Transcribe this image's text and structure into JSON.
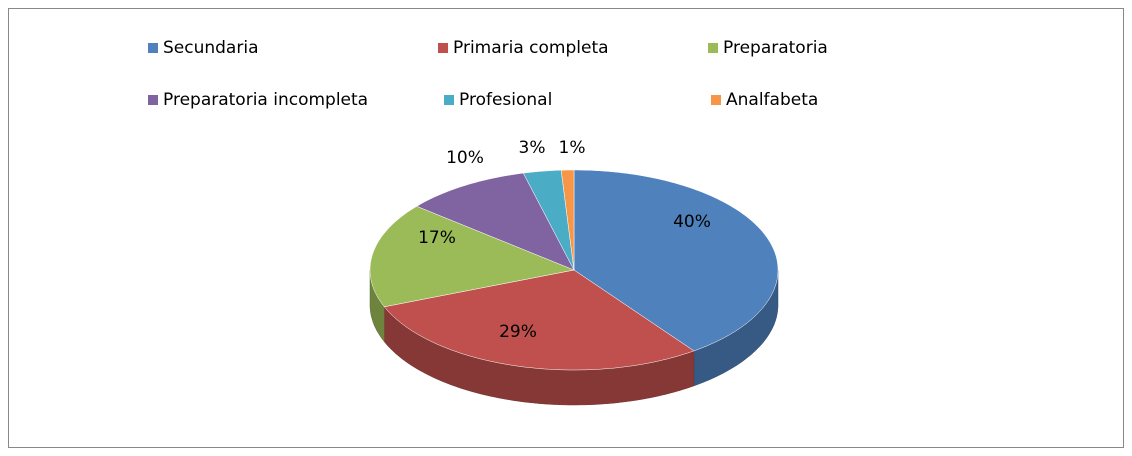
{
  "chart_data": {
    "type": "pie",
    "pie_3d": true,
    "categories": [
      "Secundaria",
      "Primaria completa",
      "Preparatoria",
      "Preparatoria incompleta",
      "Profesional",
      "Analfabeta"
    ],
    "values": [
      40,
      29,
      17,
      10,
      3,
      1
    ],
    "value_labels": [
      "40%",
      "29%",
      "17%",
      "10%",
      "3%",
      "1%"
    ],
    "colors": [
      "#4F81BD",
      "#C0504D",
      "#9BBB59",
      "#8064A2",
      "#4BACC6",
      "#F79646"
    ],
    "legend": "top"
  }
}
